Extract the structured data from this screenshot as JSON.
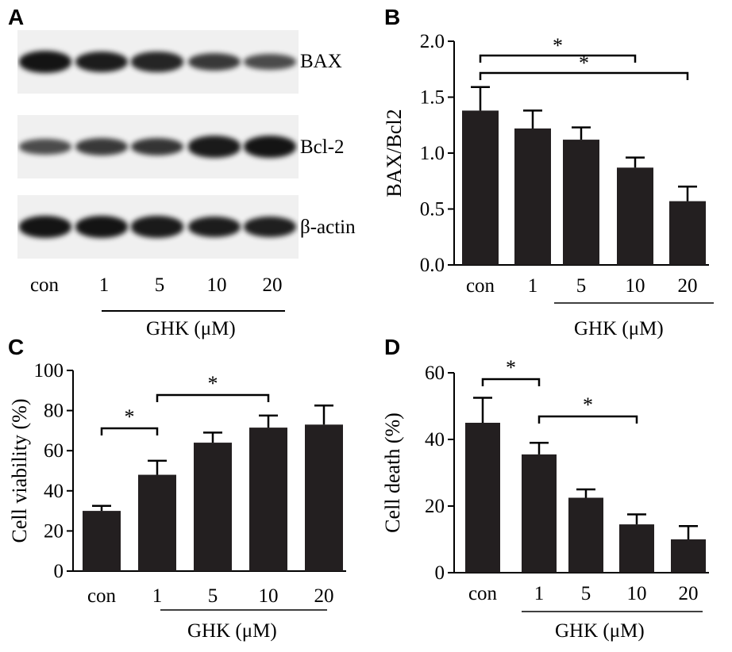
{
  "panels": {
    "a": "A",
    "b": "B",
    "c": "C",
    "d": "D"
  },
  "western_blot": {
    "rows": [
      {
        "label": "BAX",
        "intensities": [
          1.0,
          0.92,
          0.85,
          0.7,
          0.55
        ]
      },
      {
        "label": "Bcl-2",
        "intensities": [
          0.55,
          0.7,
          0.72,
          0.95,
          1.0
        ]
      },
      {
        "label": "β-actin",
        "intensities": [
          1.0,
          1.0,
          0.95,
          0.92,
          0.9
        ]
      }
    ],
    "lanes": [
      "con",
      "1",
      "5",
      "10",
      "20"
    ],
    "treatment_label": "GHK (μM)"
  },
  "chart_data": [
    {
      "type": "bar",
      "panel": "B",
      "categories": [
        "con",
        "1",
        "5",
        "10",
        "20"
      ],
      "values": [
        1.38,
        1.22,
        1.12,
        0.87,
        0.57
      ],
      "errors": [
        0.21,
        0.16,
        0.11,
        0.09,
        0.13
      ],
      "xlabel": "",
      "ylabel": "BAX/Bcl2",
      "ylim": [
        0,
        2.0
      ],
      "yticks": [
        "0.0",
        "0.5",
        "1.0",
        "1.5",
        "2.0"
      ],
      "treatment_label": "GHK (μM)",
      "significance": [
        {
          "from": "con",
          "to": "10",
          "label": "*"
        },
        {
          "from": "con",
          "to": "20",
          "label": "*"
        }
      ],
      "bar_color": "#231f20",
      "grid": false
    },
    {
      "type": "bar",
      "panel": "C",
      "categories": [
        "con",
        "1",
        "5",
        "10",
        "20"
      ],
      "values": [
        30,
        48,
        64,
        71.5,
        73
      ],
      "errors": [
        2.5,
        7,
        5,
        6,
        9.5
      ],
      "xlabel": "",
      "ylabel": "Cell viability (%)",
      "ylim": [
        0,
        100
      ],
      "yticks": [
        "0",
        "20",
        "40",
        "60",
        "80",
        "100"
      ],
      "treatment_label": "GHK (μM)",
      "significance": [
        {
          "from": "con",
          "to": "1",
          "label": "*"
        },
        {
          "from": "1",
          "to": "10",
          "label": "*"
        }
      ],
      "bar_color": "#231f20",
      "grid": false
    },
    {
      "type": "bar",
      "panel": "D",
      "categories": [
        "con",
        "1",
        "5",
        "10",
        "20"
      ],
      "values": [
        45,
        35.5,
        22.5,
        14.5,
        10
      ],
      "errors": [
        7.5,
        3.5,
        2.5,
        3,
        4
      ],
      "xlabel": "",
      "ylabel": "Cell death (%)",
      "ylim": [
        0,
        60
      ],
      "yticks": [
        "0",
        "20",
        "40",
        "60"
      ],
      "treatment_label": "GHK (μM)",
      "significance": [
        {
          "from": "con",
          "to": "1",
          "label": "*"
        },
        {
          "from": "1",
          "to": "10",
          "label": "*"
        }
      ],
      "bar_color": "#231f20",
      "grid": false
    }
  ]
}
